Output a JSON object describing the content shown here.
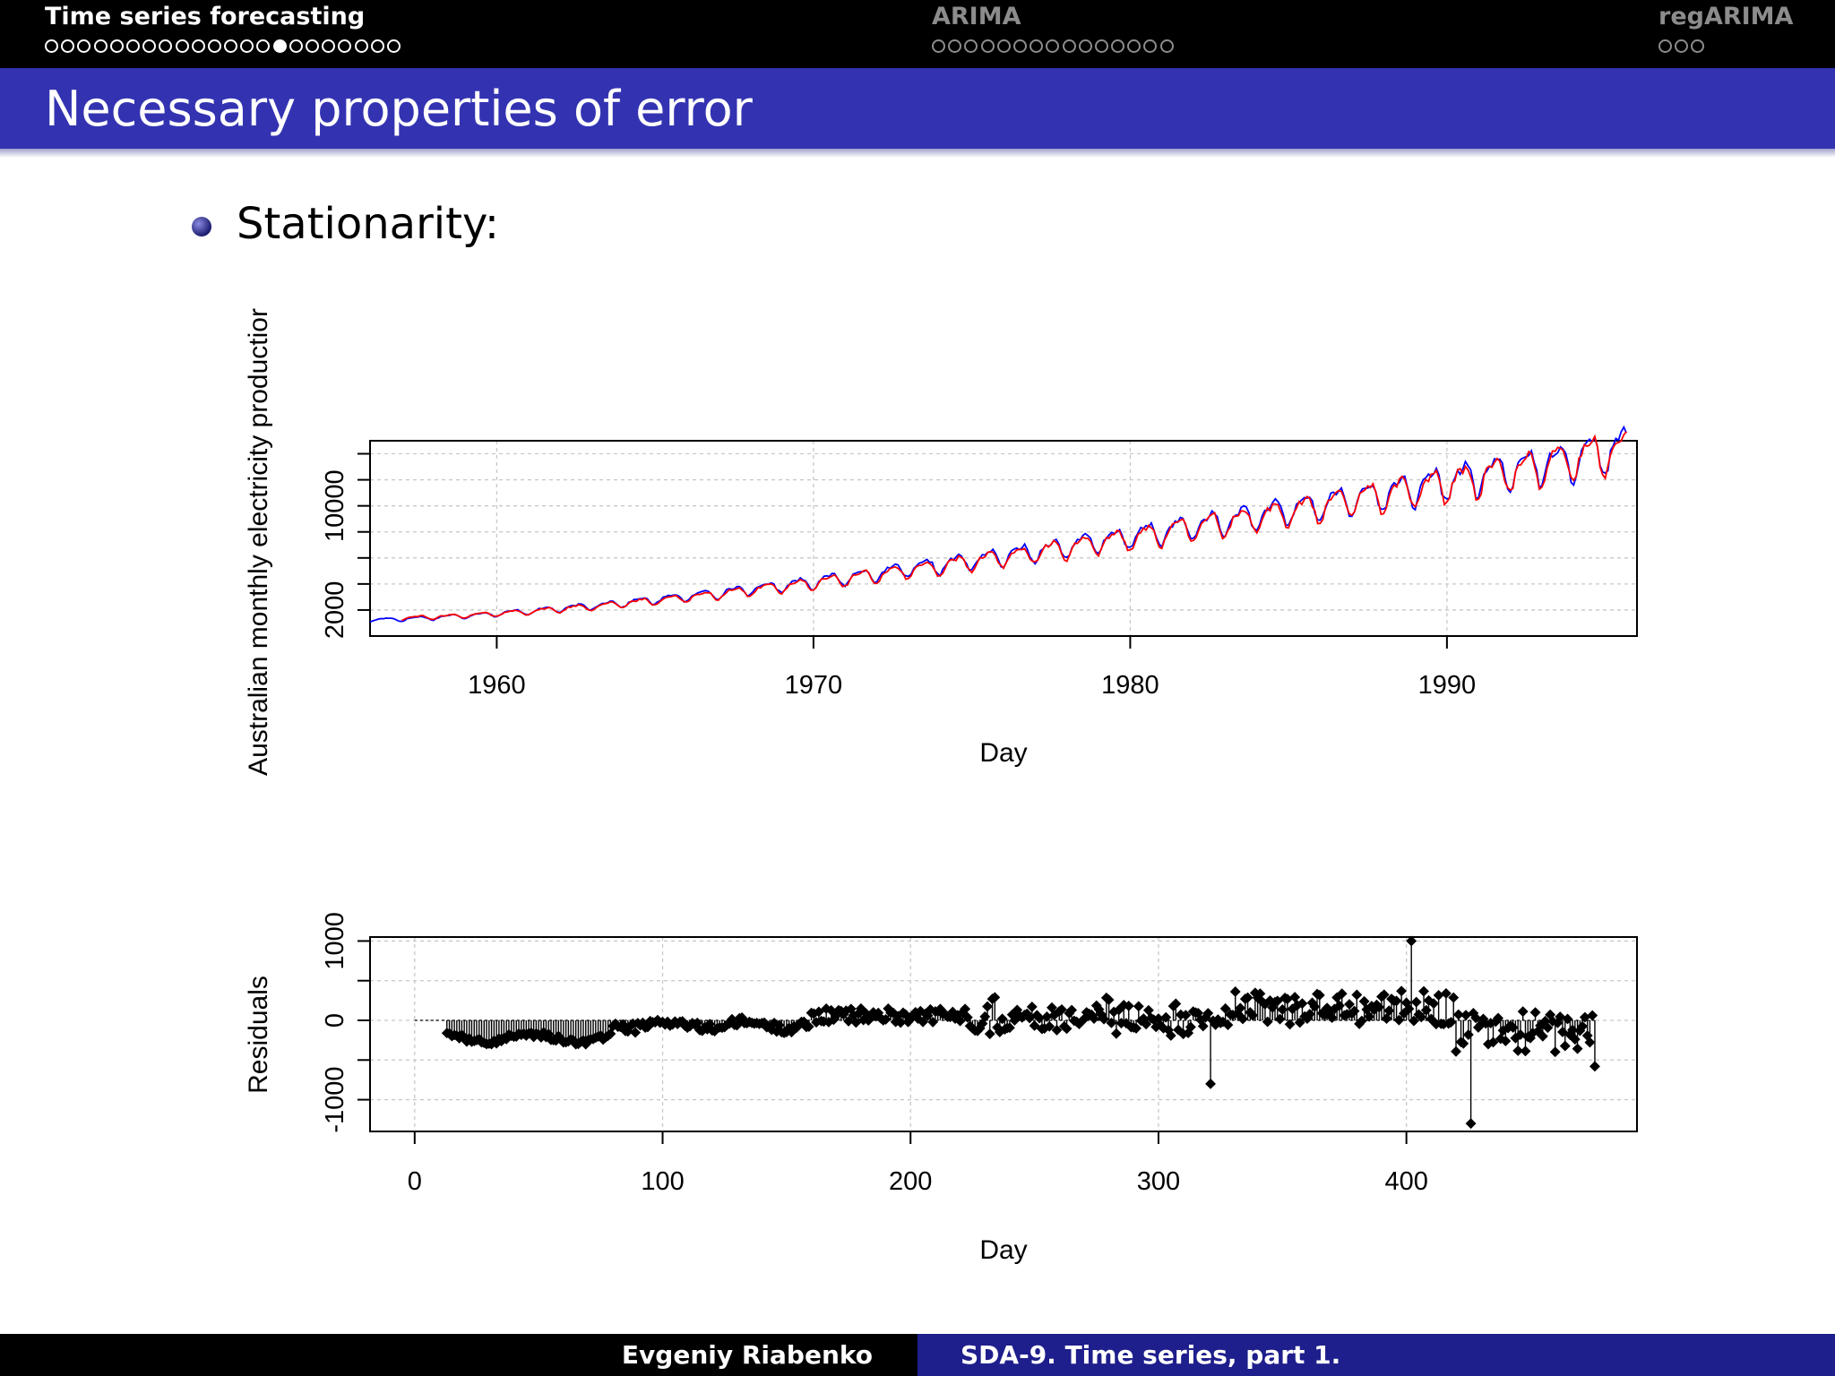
{
  "nav": {
    "sections": [
      {
        "title": "Time series forecasting",
        "dots": 22,
        "current": 14,
        "active": true
      },
      {
        "title": "ARIMA",
        "dots": 15,
        "current": -1,
        "active": false
      },
      {
        "title": "regARIMA",
        "dots": 3,
        "current": -1,
        "active": false
      }
    ]
  },
  "frame": {
    "title": "Necessary properties of error"
  },
  "bullet": {
    "text": "Stationarity:"
  },
  "footer": {
    "author": "Evgeniy Riabenko",
    "short_title": "SDA-9. Time series, part 1."
  },
  "colors": {
    "nav_bg": "#000000",
    "title_bar": "#3333b2",
    "footer_right": "#1e1e8c",
    "series_actual": "#0000ff",
    "series_fitted": "#ff0000"
  },
  "chart_data": [
    {
      "type": "line",
      "title": "",
      "xlabel": "Day",
      "ylabel": "Australian monthly electricity productior",
      "xlim": [
        1956,
        1996
      ],
      "ylim": [
        0,
        15000
      ],
      "x_ticks": [
        1960,
        1970,
        1980,
        1990
      ],
      "x_tick_labels": [
        "1960",
        "1970",
        "1980",
        "1990"
      ],
      "y_ticks": [
        2000,
        4000,
        6000,
        8000,
        10000,
        12000,
        14000
      ],
      "y_tick_labels": [
        "2000",
        "",
        "",
        "",
        "10000",
        "",
        ""
      ],
      "grid": true,
      "series": [
        {
          "color": "#0000ff",
          "x_start": 1956.0,
          "x_end": 1995.67,
          "start_value": 1250,
          "end_value": 14500,
          "seasonal_amplitude_fraction": 0.1
        },
        {
          "color": "#ff0000",
          "x_start": 1957.0,
          "x_end": 1995.67,
          "start_value": 1400,
          "end_value": 14400,
          "seasonal_amplitude_fraction": 0.1
        }
      ]
    },
    {
      "type": "scatter",
      "style": "stem",
      "title": "",
      "xlabel": "Day",
      "ylabel": "Residuals",
      "xlim": [
        -18,
        493
      ],
      "ylim": [
        -1400,
        1050
      ],
      "x_ticks": [
        0,
        100,
        200,
        300,
        400
      ],
      "x_tick_labels": [
        "0",
        "100",
        "200",
        "300",
        "400"
      ],
      "y_ticks": [
        -1000,
        -500,
        0,
        500,
        1000
      ],
      "y_tick_labels": [
        "-1000",
        "",
        "0",
        "",
        "1000"
      ],
      "grid": true,
      "n_points": 464,
      "x_first": 13,
      "x_last": 476,
      "value_range": [
        -1300,
        1000
      ],
      "notable_points": [
        {
          "x": 321,
          "y": -800
        },
        {
          "x": 402,
          "y": 1000
        },
        {
          "x": 426,
          "y": -1300
        },
        {
          "x": 476,
          "y": -580
        }
      ]
    }
  ]
}
